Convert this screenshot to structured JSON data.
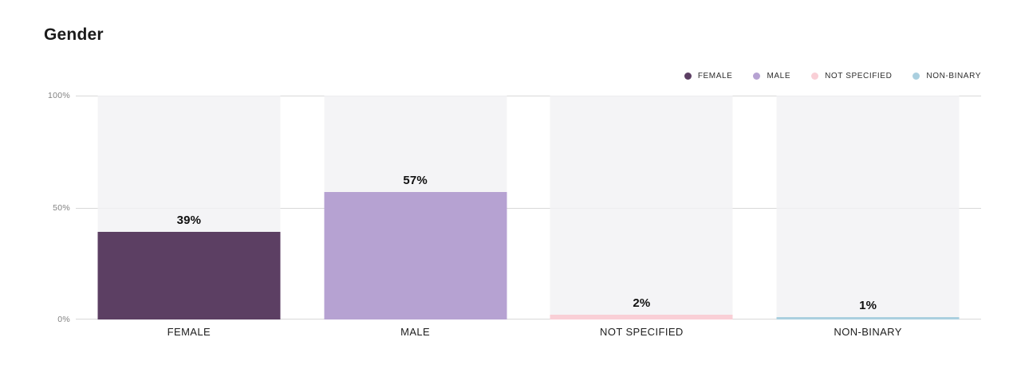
{
  "page": {
    "background": "#ffffff"
  },
  "header": {
    "title": "Gender"
  },
  "chart_data": {
    "type": "bar",
    "title": "Gender",
    "categories": [
      "FEMALE",
      "MALE",
      "NOT SPECIFIED",
      "NON-BINARY"
    ],
    "values": [
      39,
      57,
      2,
      1
    ],
    "value_labels": [
      "39%",
      "57%",
      "2%",
      "1%"
    ],
    "bar_colors": [
      "#5c3f63",
      "#b6a2d2",
      "#f9cfd6",
      "#aacfdf"
    ],
    "xlabel": "",
    "ylabel": "",
    "ylim": [
      0,
      100
    ],
    "yticks": [
      "100%",
      "50%",
      "0%"
    ],
    "grid": "horizontal",
    "track_color": "#f4f4f6",
    "gridline_color": "#d9d9d9",
    "legend_position": "top-right",
    "legend": [
      {
        "label": "FEMALE",
        "color": "#5c3f63"
      },
      {
        "label": "MALE",
        "color": "#b6a2d2"
      },
      {
        "label": "NOT SPECIFIED",
        "color": "#f9cfd6"
      },
      {
        "label": "NON-BINARY",
        "color": "#aacfdf"
      }
    ]
  }
}
